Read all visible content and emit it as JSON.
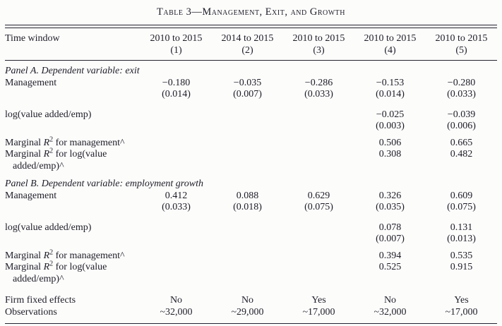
{
  "title": "Table 3—Management, Exit, and Growth",
  "header": {
    "row_label": "Time window",
    "columns": [
      {
        "window": "2010 to 2015",
        "number": "(1)"
      },
      {
        "window": "2014 to 2015",
        "number": "(2)"
      },
      {
        "window": "2010 to 2015",
        "number": "(3)"
      },
      {
        "window": "2010 to 2015",
        "number": "(4)"
      },
      {
        "window": "2010 to 2015",
        "number": "(5)"
      }
    ]
  },
  "panel_a": {
    "heading": "Panel A. Dependent variable: exit",
    "management": {
      "label": "Management",
      "values": [
        "−0.180",
        "−0.035",
        "−0.286",
        "−0.153",
        "−0.280"
      ],
      "se": [
        "(0.014)",
        "(0.007)",
        "(0.033)",
        "(0.014)",
        "(0.033)"
      ]
    },
    "log_va": {
      "label": "log(value added/emp)",
      "values": [
        "",
        "",
        "",
        "−0.025",
        "−0.039"
      ],
      "se": [
        "",
        "",
        "",
        "(0.003)",
        "(0.006)"
      ]
    },
    "marginal_mgmt": {
      "label_prefix": "Marginal ",
      "label_var": "R",
      "label_sup": "2",
      "label_suffix": " for management^",
      "values": [
        "",
        "",
        "",
        "0.506",
        "0.665"
      ]
    },
    "marginal_log": {
      "label_prefix": "Marginal ",
      "label_var": "R",
      "label_sup": "2",
      "label_suffix": " for log(value",
      "label_line2": "added/emp)^",
      "values": [
        "",
        "",
        "",
        "0.308",
        "0.482"
      ]
    }
  },
  "panel_b": {
    "heading": "Panel B. Dependent variable: employment growth",
    "management": {
      "label": "Management",
      "values": [
        "0.412",
        "0.088",
        "0.629",
        "0.326",
        "0.609"
      ],
      "se": [
        "(0.033)",
        "(0.018)",
        "(0.075)",
        "(0.035)",
        "(0.075)"
      ]
    },
    "log_va": {
      "label": "log(value added/emp)",
      "values": [
        "",
        "",
        "",
        "0.078",
        "0.131"
      ],
      "se": [
        "",
        "",
        "",
        "(0.007)",
        "(0.013)"
      ]
    },
    "marginal_mgmt": {
      "label_prefix": "Marginal ",
      "label_var": "R",
      "label_sup": "2",
      "label_suffix": " for management^",
      "values": [
        "",
        "",
        "",
        "0.394",
        "0.535"
      ]
    },
    "marginal_log": {
      "label_prefix": "Marginal ",
      "label_var": "R",
      "label_sup": "2",
      "label_suffix": " for log(value",
      "label_line2": "added/emp)^",
      "values": [
        "",
        "",
        "",
        "0.525",
        "0.915"
      ]
    }
  },
  "footer": {
    "fixed_effects": {
      "label": "Firm fixed effects",
      "values": [
        "No",
        "No",
        "Yes",
        "No",
        "Yes"
      ]
    },
    "observations": {
      "label": "Observations",
      "values": [
        "~32,000",
        "~29,000",
        "~17,000",
        "~32,000",
        "~17,000"
      ]
    }
  }
}
